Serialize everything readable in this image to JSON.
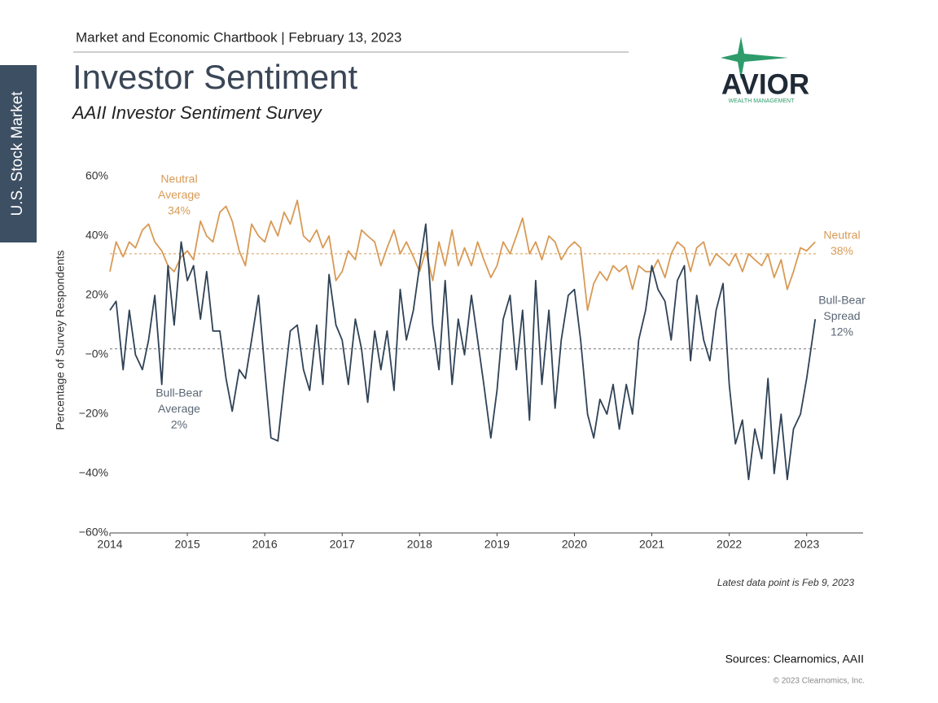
{
  "header": {
    "chartbook": "Market and Economic Chartbook | February 13, 2023",
    "title": "Investor Sentiment",
    "subtitle": "AAII Investor Sentiment Survey",
    "section": "U.S. Stock Market"
  },
  "logo": {
    "name": "AVIOR",
    "tagline": "WEALTH MANAGEMENT"
  },
  "chart_data": {
    "type": "line",
    "ylabel": "Percentage of Survey Respondents",
    "note": "Latest data point is Feb 9, 2023",
    "xlim": [
      2014,
      2023.75
    ],
    "xticks": [
      2014,
      2015,
      2016,
      2017,
      2018,
      2019,
      2020,
      2021,
      2022,
      2023
    ],
    "ylim": [
      -60,
      60
    ],
    "yticks": [
      {
        "value": -60,
        "label": "−60%"
      },
      {
        "value": -40,
        "label": "−40%"
      },
      {
        "value": -20,
        "label": "−20%"
      },
      {
        "value": 0,
        "label": "−0%"
      },
      {
        "value": 20,
        "label": "20%"
      },
      {
        "value": 40,
        "label": "40%"
      },
      {
        "value": 60,
        "label": "60%"
      }
    ],
    "x": [
      2014,
      2014.08,
      2014.17,
      2014.25,
      2014.33,
      2014.42,
      2014.5,
      2014.58,
      2014.67,
      2014.75,
      2014.83,
      2014.92,
      2015,
      2015.08,
      2015.17,
      2015.25,
      2015.33,
      2015.42,
      2015.5,
      2015.58,
      2015.67,
      2015.75,
      2015.83,
      2015.92,
      2016,
      2016.08,
      2016.17,
      2016.25,
      2016.33,
      2016.42,
      2016.5,
      2016.58,
      2016.67,
      2016.75,
      2016.83,
      2016.92,
      2017,
      2017.08,
      2017.17,
      2017.25,
      2017.33,
      2017.42,
      2017.5,
      2017.58,
      2017.67,
      2017.75,
      2017.83,
      2017.92,
      2018,
      2018.08,
      2018.17,
      2018.25,
      2018.33,
      2018.42,
      2018.5,
      2018.58,
      2018.67,
      2018.75,
      2018.83,
      2018.92,
      2019,
      2019.08,
      2019.17,
      2019.25,
      2019.33,
      2019.42,
      2019.5,
      2019.58,
      2019.67,
      2019.75,
      2019.83,
      2019.92,
      2020,
      2020.08,
      2020.17,
      2020.25,
      2020.33,
      2020.42,
      2020.5,
      2020.58,
      2020.67,
      2020.75,
      2020.83,
      2020.92,
      2021,
      2021.08,
      2021.17,
      2021.25,
      2021.33,
      2021.42,
      2021.5,
      2021.58,
      2021.67,
      2021.75,
      2021.83,
      2021.92,
      2022,
      2022.08,
      2022.17,
      2022.25,
      2022.33,
      2022.42,
      2022.5,
      2022.58,
      2022.67,
      2022.75,
      2022.83,
      2022.92,
      2023,
      2023.11
    ],
    "series": [
      {
        "color": "#d89a55",
        "average": 34,
        "values": [
          28,
          38,
          33,
          38,
          36,
          42,
          44,
          38,
          35,
          30,
          28,
          33,
          35,
          32,
          45,
          40,
          38,
          48,
          50,
          45,
          35,
          30,
          44,
          40,
          38,
          45,
          40,
          48,
          44,
          52,
          40,
          38,
          42,
          36,
          40,
          25,
          28,
          35,
          32,
          42,
          40,
          38,
          30,
          36,
          42,
          34,
          38,
          33,
          28,
          35,
          25,
          38,
          30,
          42,
          30,
          36,
          30,
          38,
          32,
          26,
          30,
          38,
          34,
          40,
          46,
          34,
          38,
          32,
          40,
          38,
          32,
          36,
          38,
          36,
          15,
          24,
          28,
          25,
          30,
          28,
          30,
          22,
          30,
          28,
          28,
          32,
          26,
          34,
          38,
          36,
          28,
          36,
          38,
          30,
          34,
          32,
          30,
          34,
          28,
          34,
          32,
          30,
          34,
          26,
          32,
          22,
          28,
          36,
          35,
          38
        ]
      },
      {
        "color": "#2f4256",
        "average": 2,
        "values": [
          15,
          18,
          -5,
          15,
          0,
          -5,
          5,
          20,
          -10,
          30,
          10,
          38,
          25,
          30,
          12,
          28,
          8,
          8,
          -8,
          -19,
          -5,
          -8,
          5,
          20,
          -5,
          -28,
          -29,
          -10,
          8,
          10,
          -5,
          -12,
          10,
          -10,
          27,
          10,
          5,
          -10,
          12,
          2,
          -16,
          8,
          -5,
          8,
          -12,
          22,
          5,
          15,
          30,
          44,
          10,
          -5,
          25,
          -10,
          12,
          0,
          20,
          5,
          -10,
          -28,
          -12,
          12,
          20,
          -5,
          15,
          -22,
          25,
          -10,
          15,
          -18,
          5,
          20,
          22,
          5,
          -20,
          -28,
          -15,
          -20,
          -10,
          -25,
          -10,
          -20,
          5,
          15,
          30,
          22,
          18,
          5,
          25,
          30,
          -2,
          20,
          5,
          -2,
          15,
          24,
          -10,
          -30,
          -22,
          -42,
          -25,
          -35,
          -8,
          -40,
          -20,
          -42,
          -25,
          -20,
          -8,
          12
        ]
      }
    ],
    "annotations": [
      [
        "Neutral",
        "Average",
        "34%"
      ],
      [
        "Neutral",
        "38%"
      ],
      [
        "Bull-Bear",
        "Spread",
        "12%"
      ],
      [
        "Bull-Bear",
        "Average",
        "2%"
      ]
    ]
  },
  "footer": {
    "sources": "Sources: Clearnomics,  AAII",
    "copyright": "© 2023 Clearnomics, Inc."
  }
}
